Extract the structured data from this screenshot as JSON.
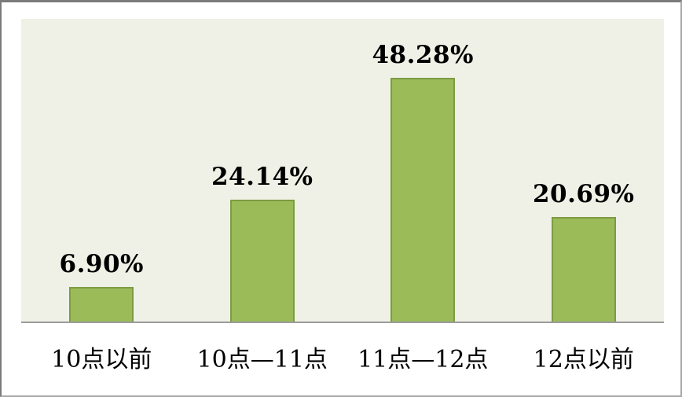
{
  "chart_data": {
    "type": "bar",
    "title": "",
    "xlabel": "",
    "ylabel": "",
    "categories": [
      "10点以前",
      "10点—11点",
      "11点—12点",
      "12点以前"
    ],
    "values": [
      6.9,
      24.14,
      48.28,
      20.69
    ],
    "value_labels": [
      "6.90%",
      "24.14%",
      "48.28%",
      "20.69%"
    ],
    "ylim": [
      0,
      60
    ],
    "grid": false,
    "legend": false,
    "axis_ticks_visible": false,
    "colors": {
      "bar_fill": "#9BBB59",
      "bar_border": "#7D9B43",
      "plot_background": "#EFF1E6",
      "chart_background": "#FFFFFF",
      "axis_line": "#9B9B9B",
      "label_text": "#000000",
      "outer_border": "#7B7B7B"
    }
  }
}
